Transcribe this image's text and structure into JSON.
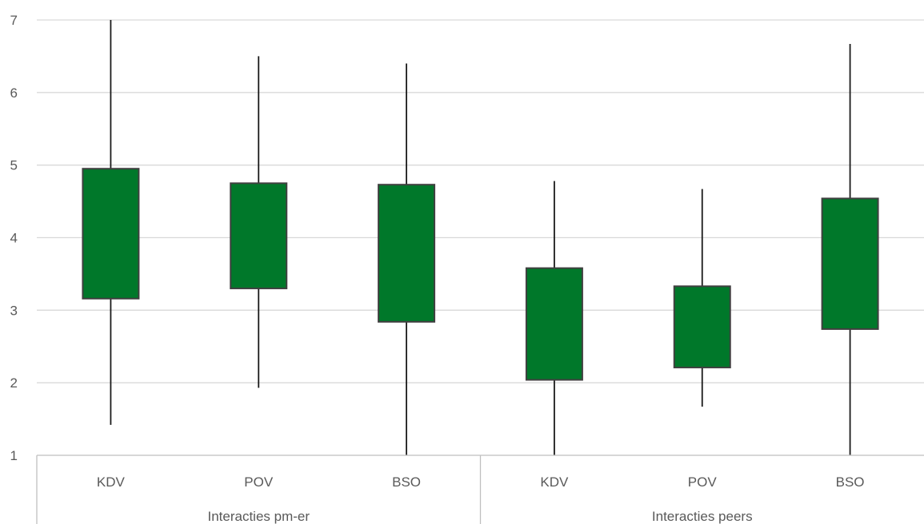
{
  "chart_data": {
    "type": "box",
    "ylim": [
      1,
      7
    ],
    "yticks": [
      1,
      2,
      3,
      4,
      5,
      6,
      7
    ],
    "grid": true,
    "colors": {
      "box": "#00782A",
      "box_edge": "#404040",
      "whisker": "#1a1a1a",
      "grid": "#d9d9d9",
      "axis": "#bfbfbf",
      "text": "#595959"
    },
    "groups": [
      {
        "label": "Interacties pm-er",
        "categories": [
          {
            "label": "KDV",
            "min": 1.42,
            "q1": 3.16,
            "q3": 4.95,
            "max": 7.0
          },
          {
            "label": "POV",
            "min": 1.93,
            "q1": 3.3,
            "q3": 4.75,
            "max": 6.5
          },
          {
            "label": "BSO",
            "min": 1.0,
            "q1": 2.84,
            "q3": 4.73,
            "max": 6.4
          }
        ]
      },
      {
        "label": "Interacties peers",
        "categories": [
          {
            "label": "KDV",
            "min": 1.0,
            "q1": 2.04,
            "q3": 3.58,
            "max": 4.78
          },
          {
            "label": "POV",
            "min": 1.67,
            "q1": 2.21,
            "q3": 3.33,
            "max": 4.67
          },
          {
            "label": "BSO",
            "min": 1.0,
            "q1": 2.74,
            "q3": 4.54,
            "max": 6.67
          }
        ]
      }
    ]
  }
}
